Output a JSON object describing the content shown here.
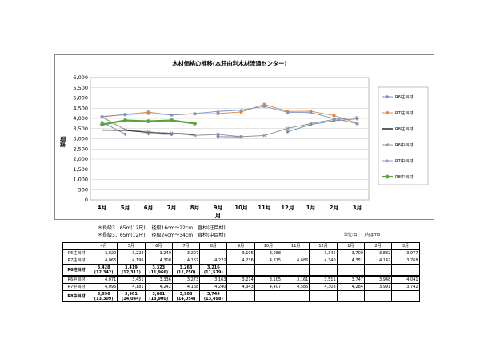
{
  "chart_data": {
    "type": "line",
    "title": "木材価格の推移(本荘由利木材流通センター)",
    "xlabel": "月",
    "ylabel": "単価",
    "ylim": [
      0,
      6000
    ],
    "ytick_step": 500,
    "grid": true,
    "legend_position": "right",
    "categories": [
      "4月",
      "5月",
      "6月",
      "7月",
      "8月",
      "9月",
      "10月",
      "11月",
      "12月",
      "1月",
      "2月",
      "3月"
    ],
    "series": [
      {
        "name": "R6柱目材",
        "color": "#6b86b8",
        "marker": "diamond",
        "values": [
          3820,
          3228,
          3249,
          3207,
          null,
          3105,
          3088,
          null,
          3345,
          3700,
          3882,
          3977
        ]
      },
      {
        "name": "R7柱目材",
        "color": "#e0843a",
        "marker": "square",
        "values": [
          4066,
          4196,
          4308,
          4167,
          4222,
          4236,
          4315,
          4686,
          4340,
          4351,
          4142,
          3768
        ]
      },
      {
        "name": "R8柱目材",
        "color": "#1a1a1a",
        "marker": "none",
        "values": [
          3428,
          3419,
          3323,
          3263,
          3216,
          null,
          null,
          null,
          null,
          null,
          null,
          null
        ]
      },
      {
        "name": "R6中目材",
        "color": "#8a8a8a",
        "marker": "x",
        "values": [
          4071,
          3451,
          3336,
          3273,
          3163,
          3214,
          3105,
          3161,
          3511,
          3747,
          3948,
          4041
        ]
      },
      {
        "name": "R7中目材",
        "color": "#7a96c8",
        "marker": "triangle",
        "values": [
          4096,
          4181,
          4242,
          4168,
          4240,
          4343,
          4407,
          4586,
          4303,
          4284,
          3991,
          3742
        ]
      },
      {
        "name": "R8中目材",
        "color": "#5aa338",
        "marker": "circle",
        "values": [
          3696,
          3901,
          3861,
          3903,
          3749,
          null,
          null,
          null,
          null,
          null,
          null,
          null
        ]
      }
    ]
  },
  "notes": [
    "＊長級3．65m(12尺)　 径級16cm〜22cm　直材(柱目材)",
    "＊長級3．65m(12尺)　 径級24cm〜34cm　直材(中目材)"
  ],
  "unit_note": "単位:石、( )内はm3",
  "table": {
    "months": [
      "4月",
      "5月",
      "6月",
      "7月",
      "8月",
      "9月",
      "10月",
      "11月",
      "12月",
      "1月",
      "2月",
      "3月"
    ],
    "rows": [
      {
        "label": "R6柱目材",
        "cells": [
          "3,820",
          "3,228",
          "3,249",
          "3,207",
          "",
          "3,105",
          "3,088",
          "",
          "3,345",
          "3,700",
          "3,882",
          "3,977"
        ]
      },
      {
        "label": "R7柱目材",
        "cells": [
          "4,066",
          "4,196",
          "4,308",
          "4,167",
          "4,222",
          "4,236",
          "4,315",
          "4,686",
          "4,340",
          "4,351",
          "4,142",
          "3,768"
        ]
      },
      {
        "label": "R8柱目材",
        "bold": true,
        "cells": [
          "3,428",
          "3,419",
          "3,323",
          "3,263",
          "3,216",
          "",
          "",
          "",
          "",
          "",
          "",
          ""
        ],
        "sub": [
          "(12,342)",
          "(12,311)",
          "(11,966)",
          "(11,750)",
          "(11,579)",
          "",
          "",
          "",
          "",
          "",
          "",
          ""
        ]
      },
      {
        "label": "R6中目材",
        "cells": [
          "4,071",
          "3,451",
          "3,336",
          "3,273",
          "3,163",
          "3,214",
          "3,105",
          "3,161",
          "3,511",
          "3,747",
          "3,948",
          "4,041"
        ],
        "sep": true
      },
      {
        "label": "R7中目材",
        "cells": [
          "4,096",
          "4,181",
          "4,242",
          "4,168",
          "4,240",
          "4,343",
          "4,407",
          "4,586",
          "4,303",
          "4,284",
          "3,991",
          "3,742"
        ]
      },
      {
        "label": "R8中目材",
        "bold": true,
        "cells": [
          "3,696",
          "3,901",
          "3,861",
          "3,903",
          "3,749",
          "",
          "",
          "",
          "",
          "",
          "",
          ""
        ],
        "sub": [
          "(13,309)",
          "(14,044)",
          "(13,900)",
          "(14,054)",
          "(13,498)",
          "",
          "",
          "",
          "",
          "",
          "",
          ""
        ]
      }
    ]
  }
}
